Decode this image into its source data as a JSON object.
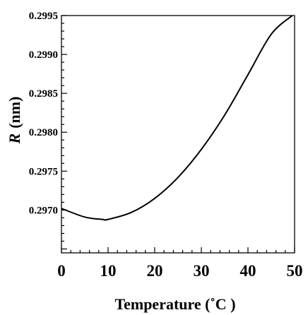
{
  "chart_data": {
    "type": "line",
    "xlabel": "Temperature (˚C )",
    "ylabel_symbol": "R",
    "ylabel_unit": "(nm)",
    "xlim": [
      0,
      50
    ],
    "ylim": [
      0.29645,
      0.2995
    ],
    "x_ticks": [
      "0",
      "10",
      "20",
      "30",
      "40",
      "50"
    ],
    "y_ticks": [
      "0.2970",
      "0.2975",
      "0.2980",
      "0.2985",
      "0.2990",
      "0.2995"
    ],
    "grid": false,
    "line_color": "#000000",
    "series": [
      {
        "x": [
          0,
          5,
          8.8,
          10,
          15,
          20,
          25,
          30,
          35,
          40,
          45,
          49.5
        ],
        "y": [
          0.29702,
          0.29691,
          0.29688,
          0.29688,
          0.29697,
          0.29715,
          0.29742,
          0.29778,
          0.29822,
          0.29874,
          0.29926,
          0.2995
        ]
      }
    ]
  }
}
